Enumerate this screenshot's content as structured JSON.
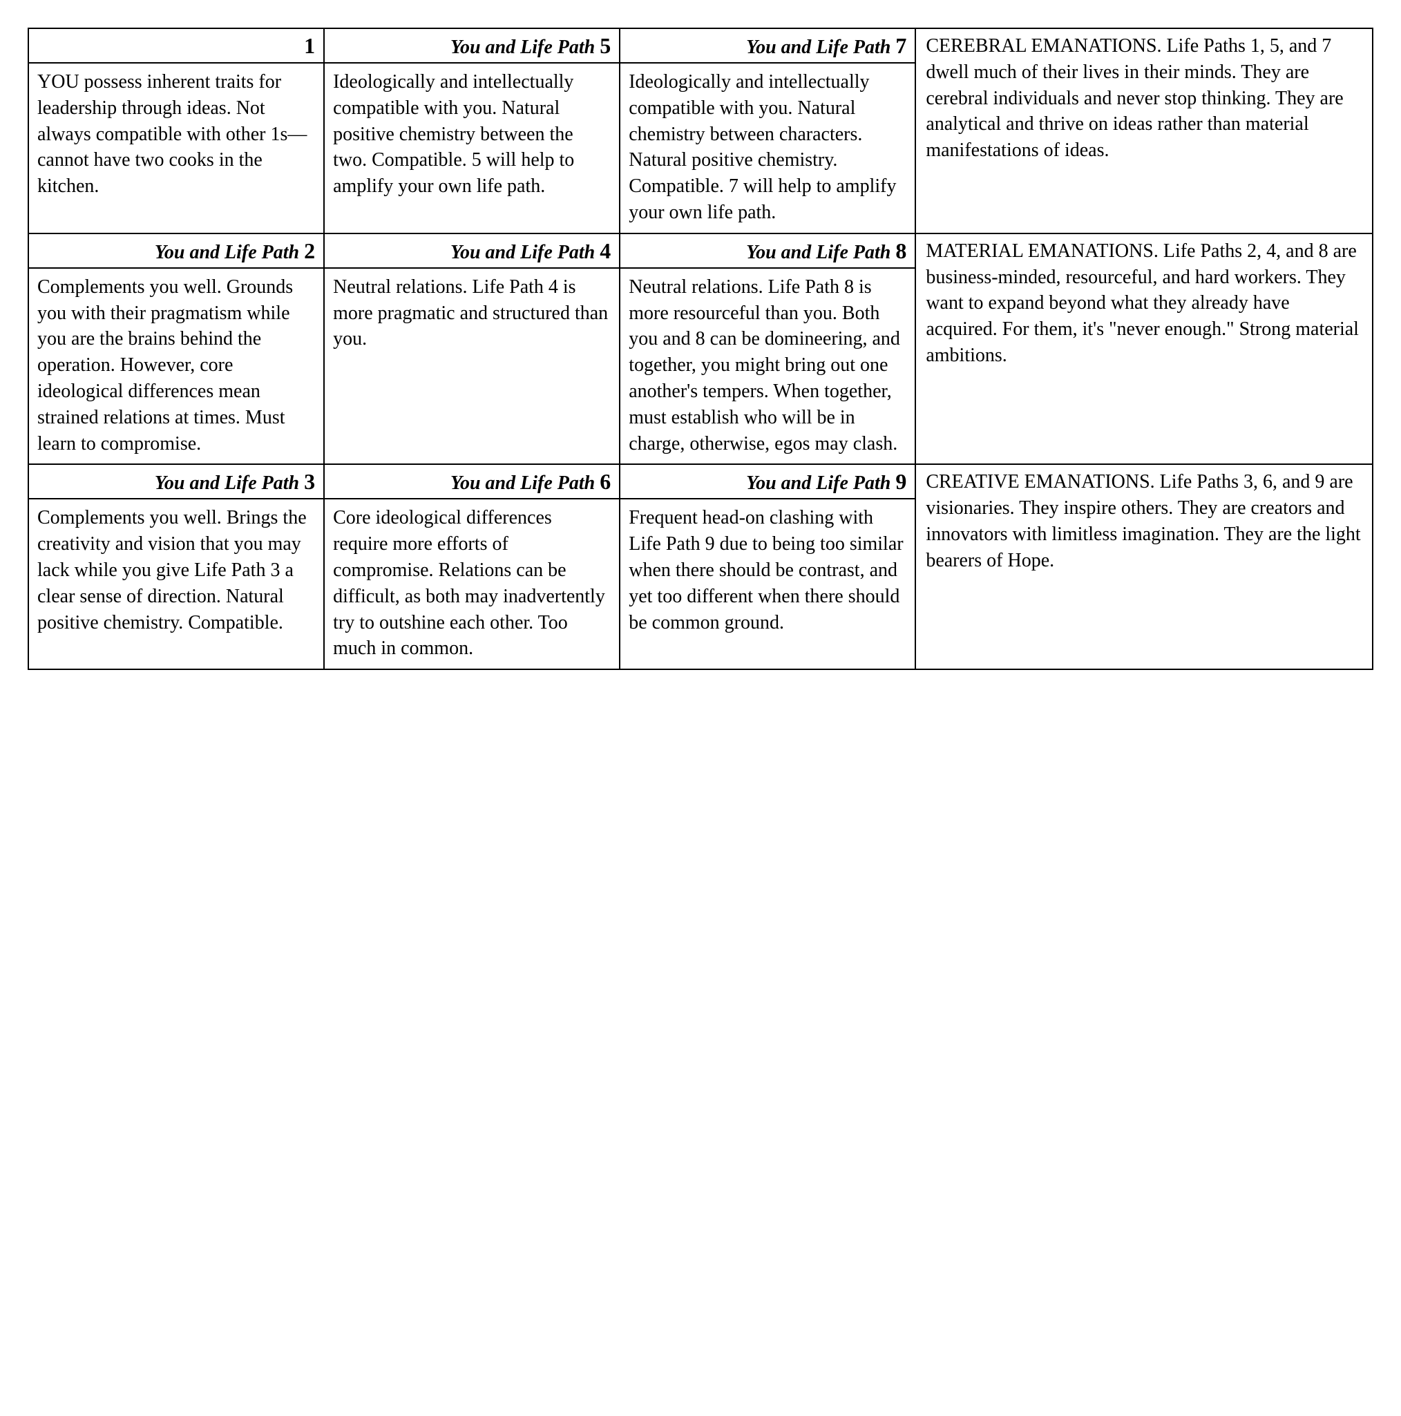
{
  "rows": [
    {
      "cells": [
        {
          "header_prefix": "",
          "header_num": "1",
          "body": "YOU possess inherent traits for leadership through ideas. Not always compatible with other 1s—cannot have two cooks in the kitchen."
        },
        {
          "header_prefix": "You and Life Path ",
          "header_num": "5",
          "body": "Ideologically and intellectually compatible with you. Natural positive chemistry between the two. Compatible. 5 will help to amplify your own life path."
        },
        {
          "header_prefix": "You and Life Path ",
          "header_num": "7",
          "body": "Ideologically and intellectually compatible with you. Natural chemistry between characters. Natural positive chemistry. Compatible. 7 will help to amplify your own life path."
        }
      ],
      "emanation": "CEREBRAL EMANATIONS. Life Paths 1, 5, and 7 dwell much of their lives in their minds. They are cerebral individuals and never stop thinking. They are analytical and thrive on ideas rather than material manifestations of ideas."
    },
    {
      "cells": [
        {
          "header_prefix": "You and Life Path ",
          "header_num": "2",
          "body": "Complements you well. Grounds you with their pragmatism while you are the brains behind the operation. However, core ideological differences mean strained relations at times. Must learn to compromise."
        },
        {
          "header_prefix": "You and Life Path ",
          "header_num": "4",
          "body": "Neutral relations. Life Path 4 is more pragmatic and structured than you."
        },
        {
          "header_prefix": "You and Life Path ",
          "header_num": "8",
          "body": "Neutral relations. Life Path 8 is more resourceful than you. Both you and 8 can be domineering, and together, you might bring out one another's tempers. When together, must establish who will be in charge, otherwise, egos may clash."
        }
      ],
      "emanation": "MATERIAL EMANATIONS. Life Paths 2, 4, and 8 are business-minded, resourceful, and hard workers. They want to expand beyond what they already have acquired. For them, it's \"never enough.\" Strong material ambitions."
    },
    {
      "cells": [
        {
          "header_prefix": "You and Life Path ",
          "header_num": "3",
          "body": "Complements you well. Brings the creativity and vision that you may lack while you give Life Path 3 a clear sense of direction. Natural positive chemistry. Compatible."
        },
        {
          "header_prefix": "You and Life Path ",
          "header_num": "6",
          "body": "Core ideological differences require more efforts of compromise. Relations can be difficult, as both may inadvertently try to outshine each other. Too much in common."
        },
        {
          "header_prefix": "You and Life Path ",
          "header_num": "9",
          "body": "Frequent head-on clashing with Life Path 9 due to being too similar when there should be contrast, and yet too different when there should be common ground."
        }
      ],
      "emanation": "CREATIVE EMANATIONS. Life Paths 3, 6, and 9 are visionaries. They inspire others. They are creators and innovators with limitless imagination. They are the light bearers of Hope."
    }
  ]
}
